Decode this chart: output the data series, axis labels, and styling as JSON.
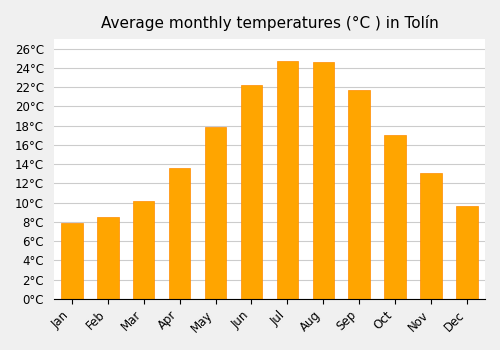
{
  "title": "Average monthly temperatures (°C ) in Tolín",
  "months": [
    "Jan",
    "Feb",
    "Mar",
    "Apr",
    "May",
    "Jun",
    "Jul",
    "Aug",
    "Sep",
    "Oct",
    "Nov",
    "Dec"
  ],
  "values": [
    7.9,
    8.5,
    10.2,
    13.6,
    17.9,
    22.2,
    24.7,
    24.6,
    21.7,
    17.0,
    13.1,
    9.7
  ],
  "bar_color": "#FFA500",
  "bar_edge_color": "#FF8C00",
  "background_color": "#f0f0f0",
  "plot_bg_color": "#ffffff",
  "grid_color": "#cccccc",
  "ylim": [
    0,
    27
  ],
  "yticks": [
    0,
    2,
    4,
    6,
    8,
    10,
    12,
    14,
    16,
    18,
    20,
    22,
    24,
    26
  ],
  "title_fontsize": 11,
  "tick_fontsize": 8.5
}
